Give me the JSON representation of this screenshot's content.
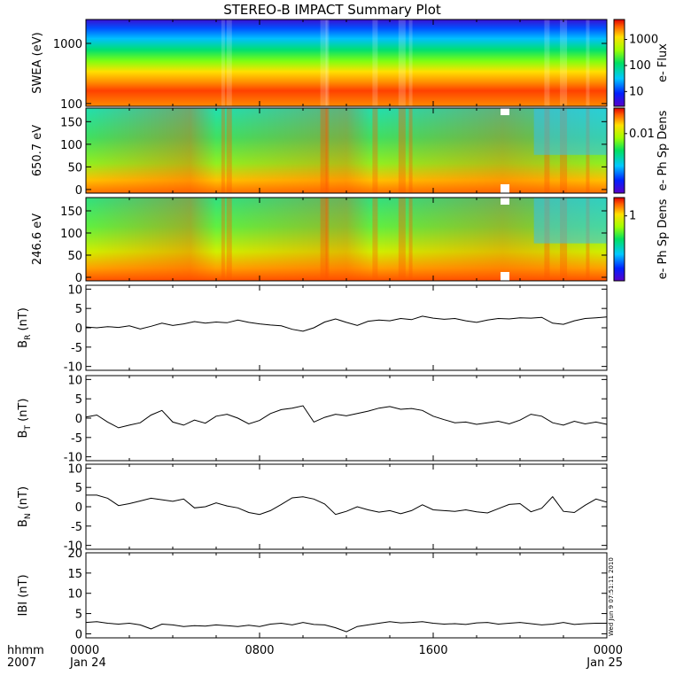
{
  "chart_data": {
    "type": "line",
    "title": "STEREO-B IMPACT Summary Plot",
    "x_label_lines": [
      "hhmm",
      "2007"
    ],
    "x_ticks": [
      {
        "t": 0,
        "lines": [
          "0000",
          "Jan 24"
        ]
      },
      {
        "t": 8,
        "lines": [
          "0800",
          ""
        ]
      },
      {
        "t": 16,
        "lines": [
          "1600",
          ""
        ]
      },
      {
        "t": 24,
        "lines": [
          "0000",
          "Jan 25"
        ]
      }
    ],
    "xlim": [
      0,
      24
    ],
    "timestamp": "Wed Jun 9 07:51:11 2010",
    "panels": [
      {
        "kind": "spectrogram",
        "ylabel": "SWEA (eV)",
        "yscale": "log",
        "ylim": [
          90,
          2500
        ],
        "y_ticks": [
          {
            "v": 100,
            "label": "100"
          },
          {
            "v": 1000,
            "label": "1000"
          }
        ],
        "colorbar": {
          "label": "e- Flux",
          "scale": "log",
          "ticks": [
            {
              "label": "1000",
              "f": 0.77
            },
            {
              "label": "100",
              "f": 0.47
            },
            {
              "label": "10",
              "f": 0.17
            }
          ]
        }
      },
      {
        "kind": "spectrogram",
        "ylabel": "650.7 eV",
        "yscale": "linear",
        "ylim": [
          -8,
          180
        ],
        "y_ticks": [
          {
            "v": 0,
            "label": "0"
          },
          {
            "v": 50,
            "label": "50"
          },
          {
            "v": 100,
            "label": "100"
          },
          {
            "v": 150,
            "label": "150"
          }
        ],
        "colorbar": {
          "label": "e- Ph Sp Dens",
          "scale": "log",
          "ticks": [
            {
              "label": "0.01",
              "f": 0.7
            }
          ]
        }
      },
      {
        "kind": "spectrogram",
        "ylabel": "246.6 eV",
        "yscale": "linear",
        "ylim": [
          -8,
          180
        ],
        "y_ticks": [
          {
            "v": 0,
            "label": "0"
          },
          {
            "v": 50,
            "label": "50"
          },
          {
            "v": 100,
            "label": "100"
          },
          {
            "v": 150,
            "label": "150"
          }
        ],
        "colorbar": {
          "label": "e- Ph Sp Dens",
          "scale": "log",
          "ticks": [
            {
              "label": "1",
              "f": 0.78
            }
          ]
        }
      },
      {
        "kind": "line",
        "name": "BR",
        "ylabel": "BR (nT)",
        "ylabel_main": "B",
        "ylabel_sub": "R",
        "ylabel_tail": " (nT)",
        "ylim": [
          -11,
          11
        ],
        "y_ticks": [
          -10,
          -5,
          0,
          5,
          10
        ],
        "x": [
          0,
          0.5,
          1,
          1.5,
          2,
          2.5,
          3,
          3.5,
          4,
          4.5,
          5,
          5.5,
          6,
          6.5,
          7,
          7.5,
          8,
          8.5,
          9,
          9.5,
          10,
          10.5,
          11,
          11.5,
          12,
          12.5,
          13,
          13.5,
          14,
          14.5,
          15,
          15.5,
          16,
          16.5,
          17,
          17.5,
          18,
          18.5,
          19,
          19.5,
          20,
          20.5,
          21,
          21.5,
          22,
          22.5,
          23,
          23.5,
          24
        ],
        "y": [
          0.2,
          0.0,
          0.3,
          0.1,
          0.5,
          -0.3,
          0.4,
          1.2,
          0.6,
          1.0,
          1.6,
          1.2,
          1.5,
          1.3,
          2.0,
          1.4,
          1.0,
          0.7,
          0.5,
          -0.4,
          -0.9,
          0.0,
          1.5,
          2.3,
          1.4,
          0.6,
          1.7,
          2.0,
          1.8,
          2.4,
          2.1,
          3.0,
          2.5,
          2.2,
          2.4,
          1.8,
          1.4,
          2.0,
          2.4,
          2.3,
          2.6,
          2.5,
          2.7,
          1.2,
          0.9,
          1.8,
          2.4,
          2.6,
          2.8
        ]
      },
      {
        "kind": "line",
        "name": "BT",
        "ylabel": "BT (nT)",
        "ylabel_main": "B",
        "ylabel_sub": "T",
        "ylabel_tail": " (nT)",
        "ylim": [
          -11,
          11
        ],
        "y_ticks": [
          -10,
          -5,
          0,
          5,
          10
        ],
        "x": [
          0,
          0.5,
          1,
          1.5,
          2,
          2.5,
          3,
          3.5,
          4,
          4.5,
          5,
          5.5,
          6,
          6.5,
          7,
          7.5,
          8,
          8.5,
          9,
          9.5,
          10,
          10.5,
          11,
          11.5,
          12,
          12.5,
          13,
          13.5,
          14,
          14.5,
          15,
          15.5,
          16,
          16.5,
          17,
          17.5,
          18,
          18.5,
          19,
          19.5,
          20,
          20.5,
          21,
          21.5,
          22,
          22.5,
          23,
          23.5,
          24
        ],
        "y": [
          0.3,
          0.8,
          -1.0,
          -2.5,
          -1.8,
          -1.2,
          0.8,
          2.0,
          -1.0,
          -1.8,
          -0.5,
          -1.3,
          0.5,
          1.0,
          0.0,
          -1.5,
          -0.6,
          1.2,
          2.2,
          2.6,
          3.2,
          -1.0,
          0.2,
          1.0,
          0.6,
          1.2,
          1.8,
          2.6,
          3.0,
          2.3,
          2.5,
          2.0,
          0.5,
          -0.4,
          -1.2,
          -1.0,
          -1.6,
          -1.2,
          -0.8,
          -1.5,
          -0.5,
          1.0,
          0.5,
          -1.2,
          -1.8,
          -0.8,
          -1.5,
          -1.0,
          -1.6
        ]
      },
      {
        "kind": "line",
        "name": "BN",
        "ylabel": "BN (nT)",
        "ylabel_main": "B",
        "ylabel_sub": "N",
        "ylabel_tail": " (nT)",
        "ylim": [
          -11,
          11
        ],
        "y_ticks": [
          -10,
          -5,
          0,
          5,
          10
        ],
        "x": [
          0,
          0.5,
          1,
          1.5,
          2,
          2.5,
          3,
          3.5,
          4,
          4.5,
          5,
          5.5,
          6,
          6.5,
          7,
          7.5,
          8,
          8.5,
          9,
          9.5,
          10,
          10.5,
          11,
          11.5,
          12,
          12.5,
          13,
          13.5,
          14,
          14.5,
          15,
          15.5,
          16,
          16.5,
          17,
          17.5,
          18,
          18.5,
          19,
          19.5,
          20,
          20.5,
          21,
          21.5,
          22,
          22.5,
          23,
          23.5,
          24
        ],
        "y": [
          3.0,
          3.0,
          2.2,
          0.3,
          0.8,
          1.5,
          2.2,
          1.8,
          1.4,
          2.0,
          -0.3,
          0.0,
          1.0,
          0.2,
          -0.3,
          -1.5,
          -2.0,
          -1.0,
          0.6,
          2.3,
          2.6,
          2.0,
          0.7,
          -2.0,
          -1.2,
          0.0,
          -0.8,
          -1.4,
          -1.0,
          -1.8,
          -1.0,
          0.5,
          -0.8,
          -1.0,
          -1.2,
          -0.8,
          -1.3,
          -1.6,
          -0.5,
          0.6,
          0.8,
          -1.3,
          -0.4,
          2.6,
          -1.2,
          -1.5,
          0.4,
          2.0,
          1.2
        ]
      },
      {
        "kind": "line",
        "name": "|B|",
        "ylabel": "IBI (nT)",
        "ylabel_main": "IBI (nT)",
        "ylabel_sub": "",
        "ylabel_tail": "",
        "ylim": [
          -1,
          20
        ],
        "y_ticks": [
          0,
          5,
          10,
          15,
          20
        ],
        "x": [
          0,
          0.5,
          1,
          1.5,
          2,
          2.5,
          3,
          3.5,
          4,
          4.5,
          5,
          5.5,
          6,
          6.5,
          7,
          7.5,
          8,
          8.5,
          9,
          9.5,
          10,
          10.5,
          11,
          11.5,
          12,
          12.5,
          13,
          13.5,
          14,
          14.5,
          15,
          15.5,
          16,
          16.5,
          17,
          17.5,
          18,
          18.5,
          19,
          19.5,
          20,
          20.5,
          21,
          21.5,
          22,
          22.5,
          23,
          23.5,
          24
        ],
        "y": [
          2.8,
          3.0,
          2.6,
          2.4,
          2.6,
          2.2,
          1.2,
          2.4,
          2.2,
          1.8,
          2.0,
          1.9,
          2.2,
          2.0,
          1.8,
          2.1,
          1.8,
          2.4,
          2.6,
          2.2,
          2.8,
          2.3,
          2.2,
          1.5,
          0.5,
          1.8,
          2.2,
          2.6,
          3.0,
          2.7,
          2.8,
          3.0,
          2.6,
          2.4,
          2.5,
          2.3,
          2.7,
          2.8,
          2.4,
          2.6,
          2.8,
          2.5,
          2.2,
          2.4,
          2.8,
          2.3,
          2.5,
          2.6,
          2.6
        ]
      }
    ]
  }
}
